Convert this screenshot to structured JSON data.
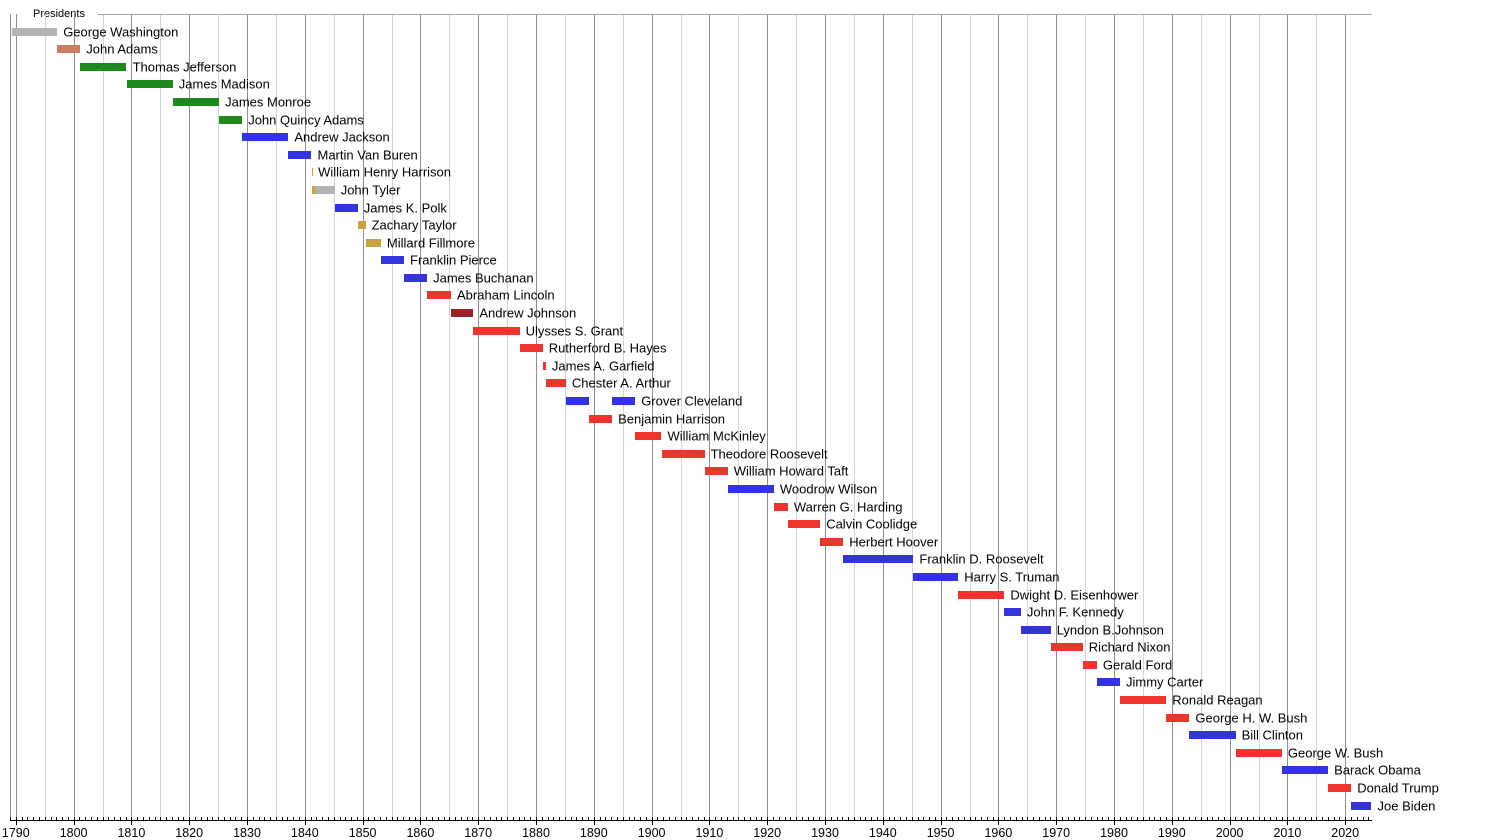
{
  "chart_data": {
    "type": "bar",
    "subtype": "gantt-timeline",
    "title": "Presidents",
    "xlabel": "",
    "ylabel": "",
    "x_range": [
      1789,
      2024.6
    ],
    "grid": "vertical",
    "x_axis": {
      "major_ticks": [
        1790,
        1800,
        1810,
        1820,
        1830,
        1840,
        1850,
        1860,
        1870,
        1880,
        1890,
        1900,
        1910,
        1920,
        1930,
        1940,
        1950,
        1960,
        1970,
        1980,
        1990,
        2000,
        2010,
        2020
      ],
      "gridline_step_years": 5,
      "minor_tick_step_years": 1
    },
    "party_colors": {
      "unaffiliated": "#B3B3B3",
      "federalist": "#CE7B5F",
      "democratic-republican": "#1E8A1E",
      "democratic": "#3333E0",
      "whig": "#C9A53E",
      "republican": "#EF332D",
      "national-union": "#9B222B"
    },
    "rows": [
      {
        "name": "George Washington",
        "party": "unaffiliated",
        "terms": [
          {
            "start": 1789.33,
            "end": 1797.17
          }
        ]
      },
      {
        "name": "John Adams",
        "party": "federalist",
        "terms": [
          {
            "start": 1797.17,
            "end": 1801.17
          }
        ]
      },
      {
        "name": "Thomas Jefferson",
        "party": "democratic-republican",
        "terms": [
          {
            "start": 1801.17,
            "end": 1809.17
          }
        ]
      },
      {
        "name": "James Madison",
        "party": "democratic-republican",
        "terms": [
          {
            "start": 1809.17,
            "end": 1817.17
          }
        ]
      },
      {
        "name": "James Monroe",
        "party": "democratic-republican",
        "terms": [
          {
            "start": 1817.17,
            "end": 1825.17
          }
        ]
      },
      {
        "name": "John Quincy Adams",
        "party": "democratic-republican",
        "terms": [
          {
            "start": 1825.17,
            "end": 1829.17
          }
        ]
      },
      {
        "name": "Andrew Jackson",
        "party": "democratic",
        "terms": [
          {
            "start": 1829.17,
            "end": 1837.17
          }
        ]
      },
      {
        "name": "Martin Van Buren",
        "party": "democratic",
        "terms": [
          {
            "start": 1837.17,
            "end": 1841.17
          }
        ]
      },
      {
        "name": "William Henry Harrison",
        "party": "whig",
        "terms": [
          {
            "start": 1841.17,
            "end": 1841.26
          }
        ]
      },
      {
        "name": "John Tyler",
        "party": "whig",
        "terms": [
          {
            "start": 1841.26,
            "end": 1841.72,
            "party": "whig"
          },
          {
            "start": 1841.72,
            "end": 1845.17,
            "party": "unaffiliated"
          }
        ]
      },
      {
        "name": "James K. Polk",
        "party": "democratic",
        "terms": [
          {
            "start": 1845.17,
            "end": 1849.17
          }
        ]
      },
      {
        "name": "Zachary Taylor",
        "party": "whig",
        "terms": [
          {
            "start": 1849.17,
            "end": 1850.52
          }
        ]
      },
      {
        "name": "Millard Fillmore",
        "party": "whig",
        "terms": [
          {
            "start": 1850.52,
            "end": 1853.17
          }
        ]
      },
      {
        "name": "Franklin Pierce",
        "party": "democratic",
        "terms": [
          {
            "start": 1853.17,
            "end": 1857.17
          }
        ]
      },
      {
        "name": "James Buchanan",
        "party": "democratic",
        "terms": [
          {
            "start": 1857.17,
            "end": 1861.17
          }
        ]
      },
      {
        "name": "Abraham Lincoln",
        "party": "republican",
        "terms": [
          {
            "start": 1861.17,
            "end": 1865.29
          }
        ]
      },
      {
        "name": "Andrew Johnson",
        "party": "national-union",
        "terms": [
          {
            "start": 1865.29,
            "end": 1869.17
          }
        ]
      },
      {
        "name": "Ulysses S. Grant",
        "party": "republican",
        "terms": [
          {
            "start": 1869.17,
            "end": 1877.17
          }
        ]
      },
      {
        "name": "Rutherford B. Hayes",
        "party": "republican",
        "terms": [
          {
            "start": 1877.17,
            "end": 1881.17
          }
        ]
      },
      {
        "name": "James A. Garfield",
        "party": "republican",
        "terms": [
          {
            "start": 1881.17,
            "end": 1881.72
          }
        ]
      },
      {
        "name": "Chester A. Arthur",
        "party": "republican",
        "terms": [
          {
            "start": 1881.72,
            "end": 1885.17
          }
        ]
      },
      {
        "name": "Grover Cleveland",
        "party": "democratic",
        "terms": [
          {
            "start": 1885.17,
            "end": 1889.17
          },
          {
            "start": 1893.17,
            "end": 1897.17
          }
        ]
      },
      {
        "name": "Benjamin Harrison",
        "party": "republican",
        "terms": [
          {
            "start": 1889.17,
            "end": 1893.17
          }
        ]
      },
      {
        "name": "William McKinley",
        "party": "republican",
        "terms": [
          {
            "start": 1897.17,
            "end": 1901.71
          }
        ]
      },
      {
        "name": "Theodore Roosevelt",
        "party": "republican",
        "terms": [
          {
            "start": 1901.71,
            "end": 1909.17
          }
        ]
      },
      {
        "name": "William Howard Taft",
        "party": "republican",
        "terms": [
          {
            "start": 1909.17,
            "end": 1913.17
          }
        ]
      },
      {
        "name": "Woodrow Wilson",
        "party": "democratic",
        "terms": [
          {
            "start": 1913.17,
            "end": 1921.17
          }
        ]
      },
      {
        "name": "Warren G. Harding",
        "party": "republican",
        "terms": [
          {
            "start": 1921.17,
            "end": 1923.59
          }
        ]
      },
      {
        "name": "Calvin Coolidge",
        "party": "republican",
        "terms": [
          {
            "start": 1923.59,
            "end": 1929.17
          }
        ]
      },
      {
        "name": "Herbert Hoover",
        "party": "republican",
        "terms": [
          {
            "start": 1929.17,
            "end": 1933.17
          }
        ]
      },
      {
        "name": "Franklin D. Roosevelt",
        "party": "democratic",
        "terms": [
          {
            "start": 1933.17,
            "end": 1945.3
          }
        ]
      },
      {
        "name": "Harry S. Truman",
        "party": "democratic",
        "terms": [
          {
            "start": 1945.3,
            "end": 1953.05
          }
        ]
      },
      {
        "name": "Dwight D. Eisenhower",
        "party": "republican",
        "terms": [
          {
            "start": 1953.05,
            "end": 1961.05
          }
        ]
      },
      {
        "name": "John F. Kennedy",
        "party": "democratic",
        "terms": [
          {
            "start": 1961.05,
            "end": 1963.9
          }
        ]
      },
      {
        "name": "Lyndon B.Johnson",
        "party": "democratic",
        "terms": [
          {
            "start": 1963.9,
            "end": 1969.05
          }
        ]
      },
      {
        "name": "Richard Nixon",
        "party": "republican",
        "terms": [
          {
            "start": 1969.05,
            "end": 1974.6
          }
        ]
      },
      {
        "name": "Gerald Ford",
        "party": "republican",
        "terms": [
          {
            "start": 1974.6,
            "end": 1977.05
          }
        ]
      },
      {
        "name": "Jimmy Carter",
        "party": "democratic",
        "terms": [
          {
            "start": 1977.05,
            "end": 1981.05
          }
        ]
      },
      {
        "name": "Ronald Reagan",
        "party": "republican",
        "terms": [
          {
            "start": 1981.05,
            "end": 1989.05
          }
        ]
      },
      {
        "name": "George H. W. Bush",
        "party": "republican",
        "terms": [
          {
            "start": 1989.05,
            "end": 1993.05
          }
        ]
      },
      {
        "name": "Bill Clinton",
        "party": "democratic",
        "terms": [
          {
            "start": 1993.05,
            "end": 2001.05
          }
        ]
      },
      {
        "name": "George W. Bush",
        "party": "republican",
        "terms": [
          {
            "start": 2001.05,
            "end": 2009.05
          }
        ]
      },
      {
        "name": "Barack Obama",
        "party": "democratic",
        "terms": [
          {
            "start": 2009.05,
            "end": 2017.05
          }
        ]
      },
      {
        "name": "Donald Trump",
        "party": "republican",
        "terms": [
          {
            "start": 2017.05,
            "end": 2021.05
          }
        ]
      },
      {
        "name": "Joe Biden",
        "party": "democratic",
        "terms": [
          {
            "start": 2021.05,
            "end": 2024.55
          }
        ]
      }
    ]
  }
}
